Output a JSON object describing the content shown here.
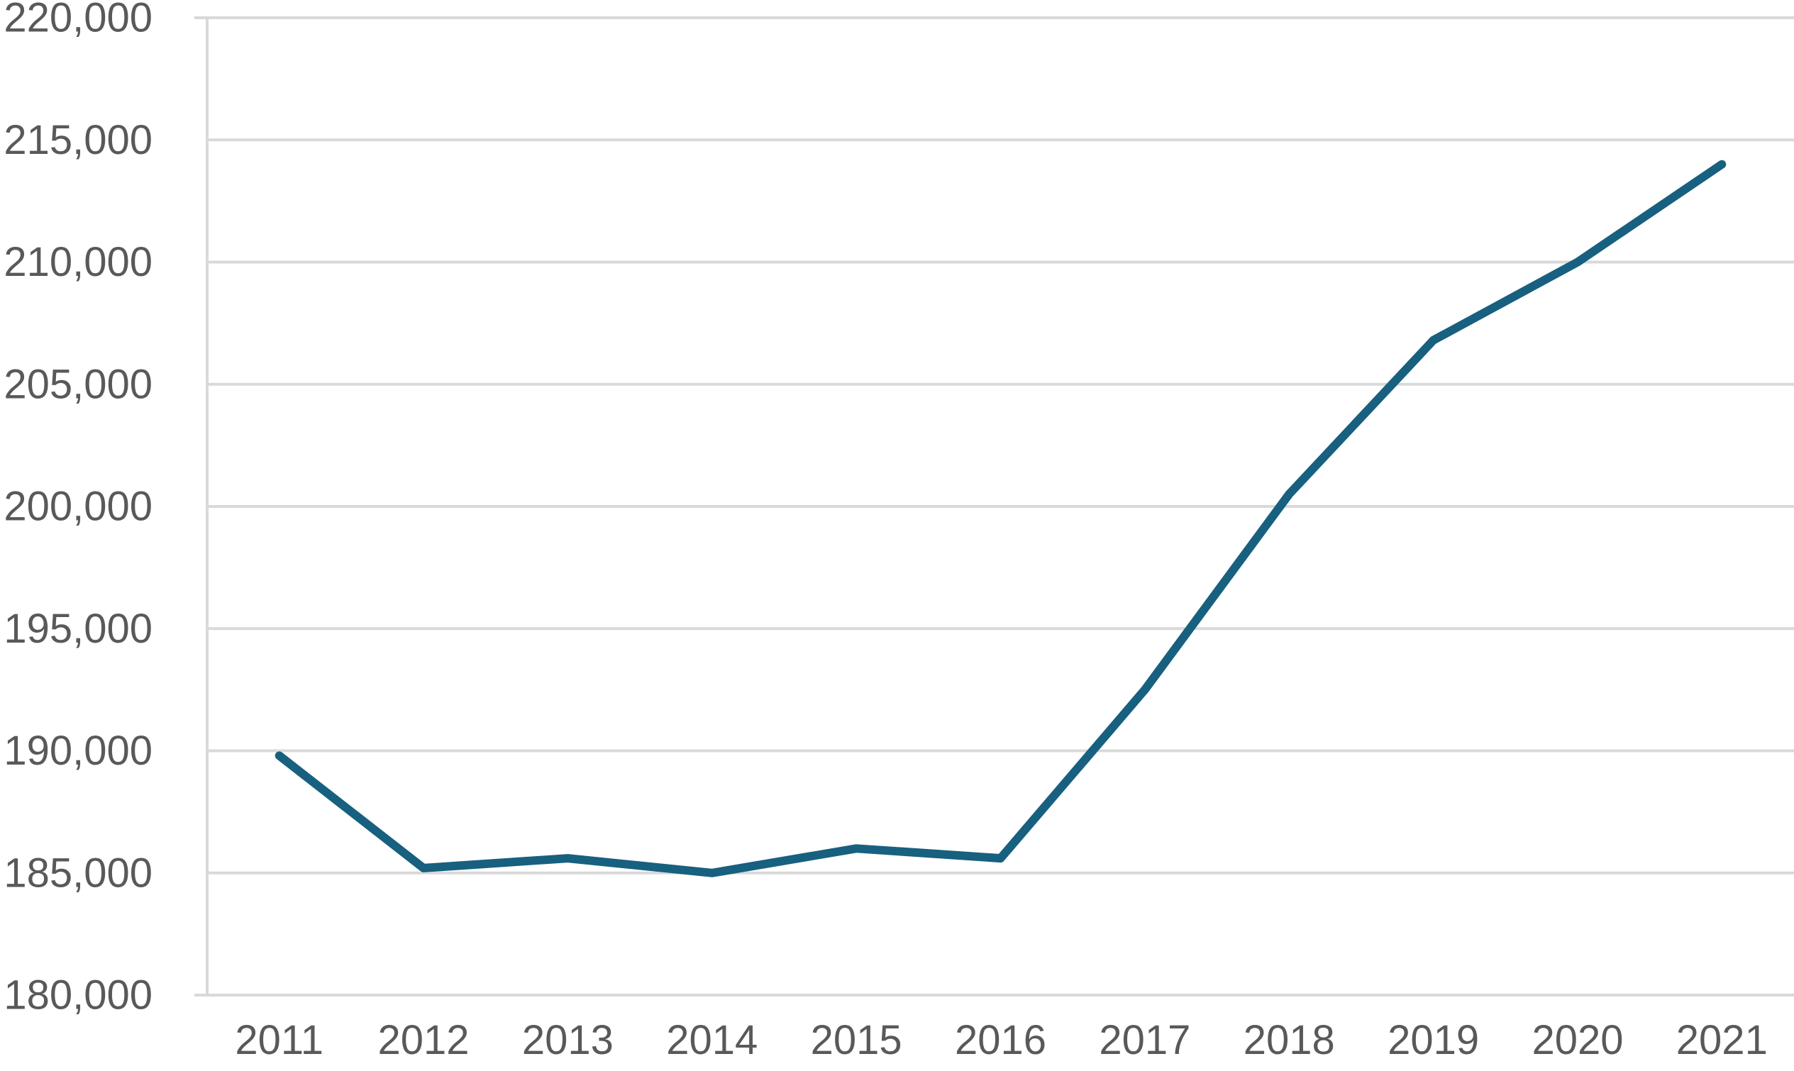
{
  "chart_data": {
    "type": "line",
    "title": "",
    "xlabel": "",
    "ylabel": "",
    "categories": [
      "2011",
      "2012",
      "2013",
      "2014",
      "2015",
      "2016",
      "2017",
      "2018",
      "2019",
      "2020",
      "2021"
    ],
    "series": [
      {
        "values": [
          189800,
          185200,
          185600,
          185000,
          186000,
          185600,
          192500,
          200500,
          206800,
          210000,
          214000
        ]
      }
    ],
    "ylim": [
      180000,
      220000
    ],
    "yticks": [
      180000,
      185000,
      190000,
      195000,
      200000,
      205000,
      210000,
      215000,
      220000
    ],
    "ytick_labels": [
      "180,000",
      "185,000",
      "190,000",
      "195,000",
      "200,000",
      "205,000",
      "210,000",
      "215,000",
      "220,000"
    ],
    "grid": true,
    "legend": "none"
  },
  "colors": {
    "series": "#17607f",
    "grid": "#d9d9d9",
    "text": "#595959"
  }
}
